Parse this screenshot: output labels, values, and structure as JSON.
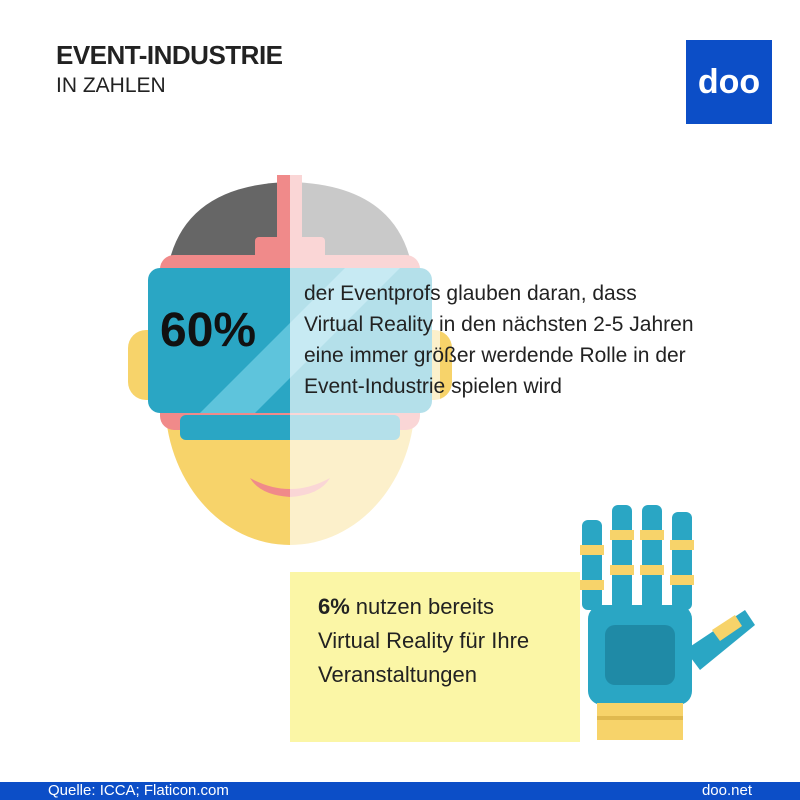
{
  "header": {
    "title": "EVENT-INDUSTRIE",
    "subtitle": "IN ZAHLEN",
    "logo": "doo"
  },
  "stat1": {
    "highlight": "60%",
    "lines": [
      "der Eventprofs glauben daran, dass",
      "Virtual Reality in den nächsten 2-5 Jahren",
      "eine immer größer werdende Rolle in der",
      "Event-Industrie spielen wird"
    ]
  },
  "stat2": {
    "highlight": "6%",
    "lines": [
      "nutzen bereits",
      "Virtual Reality für Ihre",
      "Veranstaltungen"
    ]
  },
  "footer": {
    "source": "Quelle: ICCA; Flaticon.com",
    "url": "doo.net"
  }
}
